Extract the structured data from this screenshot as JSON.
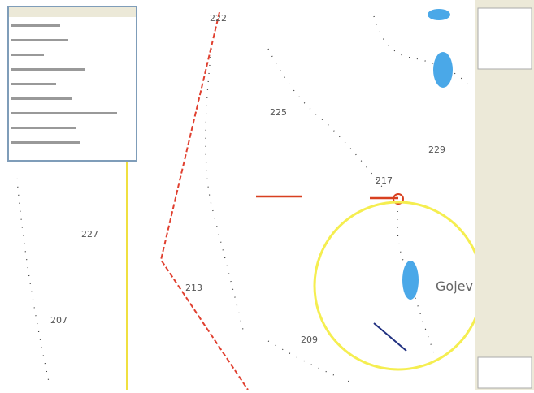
{
  "map": {
    "labels": [
      "222",
      "225",
      "229",
      "217",
      "227",
      "213",
      "207",
      "209",
      "Gojev"
    ]
  }
}
